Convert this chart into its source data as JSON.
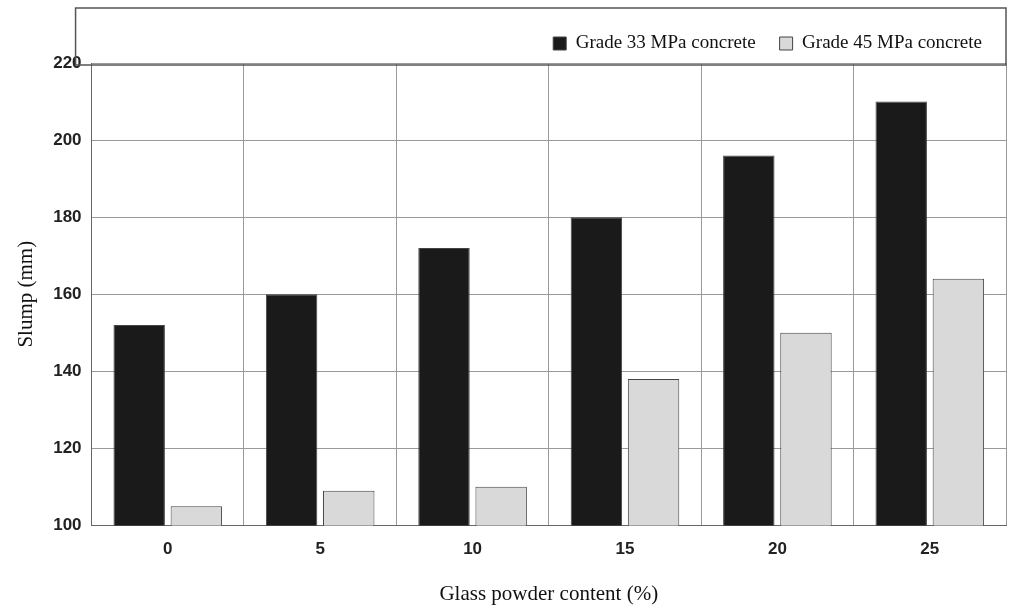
{
  "chart_data": {
    "type": "bar",
    "xlabel": "Glass powder content (%)",
    "ylabel": "Slump (mm)",
    "categories": [
      "0",
      "5",
      "10",
      "15",
      "20",
      "25"
    ],
    "series": [
      {
        "name": "Grade 33 MPa concrete",
        "color": "#1a1a1a",
        "values": [
          152,
          160,
          172,
          180,
          196,
          210
        ]
      },
      {
        "name": "Grade 45 MPa concrete",
        "color": "#d9d9d9",
        "values": [
          105,
          109,
          110,
          138,
          150,
          164
        ]
      }
    ],
    "ylim": [
      100,
      220
    ],
    "yticks": [
      100,
      120,
      140,
      160,
      180,
      200,
      220
    ],
    "grid": true,
    "legend": "top"
  }
}
